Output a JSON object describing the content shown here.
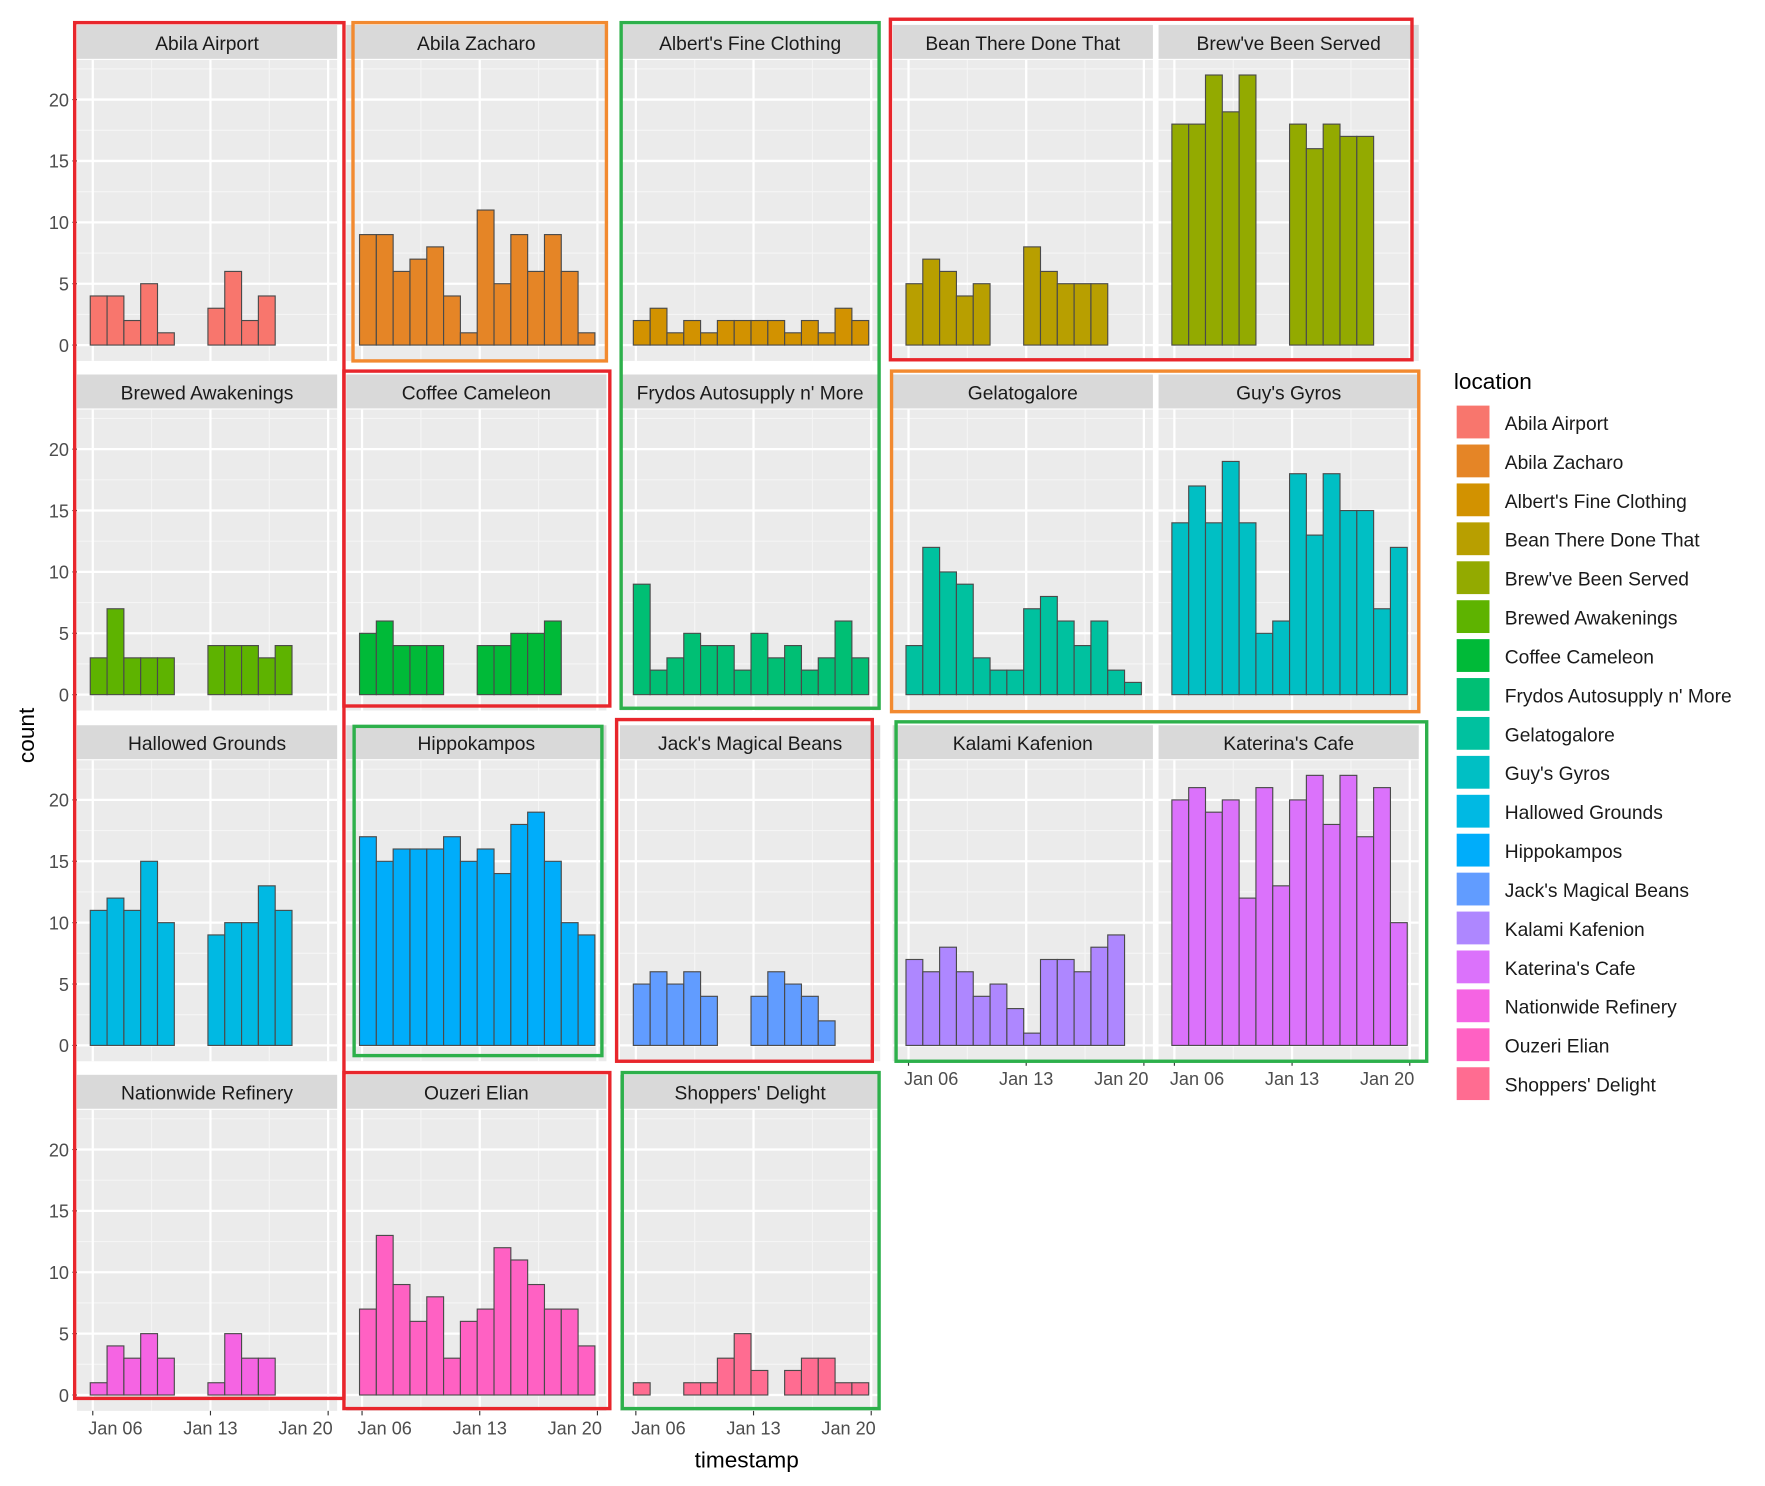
{
  "chart_data": {
    "type": "bar",
    "title": "",
    "xlabel": "timestamp",
    "ylabel": "count",
    "ylim": [
      0,
      23
    ],
    "y_ticks": [
      "0",
      "5",
      "10",
      "15",
      "20"
    ],
    "x_ticks": [
      "Jan 06",
      "Jan 13",
      "Jan 20"
    ],
    "legend": {
      "title": "location",
      "placement": "right"
    },
    "facets": [
      {
        "name": "Abila Airport",
        "color": "#F8766D",
        "values": [
          4,
          4,
          2,
          5,
          1,
          0,
          0,
          3,
          6,
          2,
          4,
          0,
          0,
          0
        ]
      },
      {
        "name": "Abila Zacharo",
        "color": "#E58526",
        "values": [
          9,
          9,
          6,
          7,
          8,
          4,
          1,
          11,
          5,
          9,
          6,
          9,
          6,
          1
        ]
      },
      {
        "name": "Albert's Fine Clothing",
        "color": "#D29200",
        "values": [
          2,
          3,
          1,
          2,
          1,
          2,
          2,
          2,
          2,
          1,
          2,
          1,
          3,
          2
        ]
      },
      {
        "name": "Bean There Done That",
        "color": "#B89F00",
        "values": [
          5,
          7,
          6,
          4,
          5,
          0,
          0,
          8,
          6,
          5,
          5,
          5,
          0,
          0
        ]
      },
      {
        "name": "Brew've Been Served",
        "color": "#93AA00",
        "values": [
          18,
          18,
          22,
          19,
          22,
          0,
          0,
          18,
          16,
          18,
          17,
          17,
          0,
          0
        ]
      },
      {
        "name": "Brewed Awakenings",
        "color": "#5EB300",
        "values": [
          3,
          7,
          3,
          3,
          3,
          0,
          0,
          4,
          4,
          4,
          3,
          4,
          0,
          0
        ]
      },
      {
        "name": "Coffee Cameleon",
        "color": "#00BA38",
        "values": [
          5,
          6,
          4,
          4,
          4,
          0,
          0,
          4,
          4,
          5,
          5,
          6,
          0,
          0
        ]
      },
      {
        "name": "Frydos Autosupply n' More",
        "color": "#00BF74",
        "values": [
          9,
          2,
          3,
          5,
          4,
          4,
          2,
          5,
          3,
          4,
          2,
          3,
          6,
          3
        ]
      },
      {
        "name": "Gelatogalore",
        "color": "#00C19F",
        "values": [
          4,
          12,
          10,
          9,
          3,
          2,
          2,
          7,
          8,
          6,
          4,
          6,
          2,
          1
        ]
      },
      {
        "name": "Guy's Gyros",
        "color": "#00BFC4",
        "values": [
          14,
          17,
          14,
          19,
          14,
          5,
          6,
          18,
          13,
          18,
          15,
          15,
          7,
          12
        ]
      },
      {
        "name": "Hallowed Grounds",
        "color": "#00B9E3",
        "values": [
          11,
          12,
          11,
          15,
          10,
          0,
          0,
          9,
          10,
          10,
          13,
          11,
          0,
          0
        ]
      },
      {
        "name": "Hippokampos",
        "color": "#00ADFA",
        "values": [
          17,
          15,
          16,
          16,
          16,
          17,
          15,
          16,
          14,
          18,
          19,
          15,
          10,
          9
        ]
      },
      {
        "name": "Jack's Magical Beans",
        "color": "#619CFF",
        "values": [
          5,
          6,
          5,
          6,
          4,
          0,
          0,
          4,
          6,
          5,
          4,
          2,
          0,
          0
        ]
      },
      {
        "name": "Kalami Kafenion",
        "color": "#AE87FF",
        "values": [
          7,
          6,
          8,
          6,
          4,
          5,
          3,
          1,
          7,
          7,
          6,
          8,
          9,
          0
        ]
      },
      {
        "name": "Katerina's Cafe",
        "color": "#DB72FB",
        "values": [
          20,
          21,
          19,
          20,
          12,
          21,
          13,
          20,
          22,
          18,
          22,
          17,
          21,
          10
        ]
      },
      {
        "name": "Nationwide Refinery",
        "color": "#F564E3",
        "values": [
          1,
          4,
          3,
          5,
          3,
          0,
          0,
          1,
          5,
          3,
          3,
          0,
          0,
          0
        ]
      },
      {
        "name": "Ouzeri Elian",
        "color": "#FF61C3",
        "values": [
          7,
          13,
          9,
          6,
          8,
          3,
          6,
          7,
          12,
          11,
          9,
          7,
          7,
          4
        ]
      },
      {
        "name": "Shoppers' Delight",
        "color": "#FF6C91",
        "values": [
          1,
          0,
          0,
          1,
          1,
          3,
          5,
          2,
          0,
          2,
          3,
          3,
          1,
          1
        ]
      }
    ]
  },
  "highlight_colors": {
    "red": "#E8262C",
    "orange": "#F28A30",
    "green": "#2DB04B"
  }
}
